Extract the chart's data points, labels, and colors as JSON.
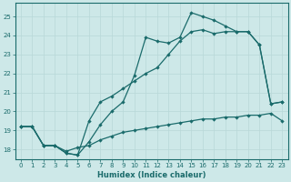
{
  "xlabel": "Humidex (Indice chaleur)",
  "background_color": "#cde8e8",
  "grid_color": "#b8d8d8",
  "line_color": "#1a6b6b",
  "xlim": [
    -0.5,
    23.5
  ],
  "ylim": [
    17.5,
    25.7
  ],
  "xticks": [
    0,
    1,
    2,
    3,
    4,
    5,
    6,
    7,
    8,
    9,
    10,
    11,
    12,
    13,
    14,
    15,
    16,
    17,
    18,
    19,
    20,
    21,
    22,
    23
  ],
  "yticks": [
    18,
    19,
    20,
    21,
    22,
    23,
    24,
    25
  ],
  "top_x": [
    0,
    1,
    2,
    3,
    4,
    5,
    6,
    7,
    8,
    9,
    10,
    11,
    12,
    13,
    14,
    15,
    16,
    17,
    18,
    19,
    20,
    21,
    22,
    23
  ],
  "top_y": [
    19.2,
    19.2,
    18.2,
    18.2,
    17.8,
    17.7,
    18.4,
    19.3,
    20.0,
    20.5,
    21.9,
    23.9,
    23.7,
    23.6,
    23.9,
    25.2,
    25.0,
    24.8,
    24.5,
    24.2,
    24.2,
    23.5,
    20.4,
    20.5
  ],
  "mid_x": [
    0,
    1,
    2,
    3,
    4,
    5,
    6,
    7,
    8,
    9,
    10,
    11,
    12,
    13,
    14,
    15,
    16,
    17,
    18,
    19,
    20,
    21,
    22,
    23
  ],
  "mid_y": [
    19.2,
    19.2,
    18.2,
    18.2,
    17.8,
    17.7,
    19.5,
    20.5,
    20.8,
    21.2,
    21.6,
    22.0,
    22.3,
    23.0,
    23.7,
    24.2,
    24.3,
    24.1,
    24.2,
    24.2,
    24.2,
    23.5,
    20.4,
    20.5
  ],
  "bot_x": [
    0,
    1,
    2,
    3,
    4,
    5,
    6,
    7,
    8,
    9,
    10,
    11,
    12,
    13,
    14,
    15,
    16,
    17,
    18,
    19,
    20,
    21,
    22,
    23
  ],
  "bot_y": [
    19.2,
    19.2,
    18.2,
    18.2,
    17.9,
    18.1,
    18.2,
    18.5,
    18.7,
    18.9,
    19.0,
    19.1,
    19.2,
    19.3,
    19.4,
    19.5,
    19.6,
    19.6,
    19.7,
    19.7,
    19.8,
    19.8,
    19.9,
    19.5
  ]
}
